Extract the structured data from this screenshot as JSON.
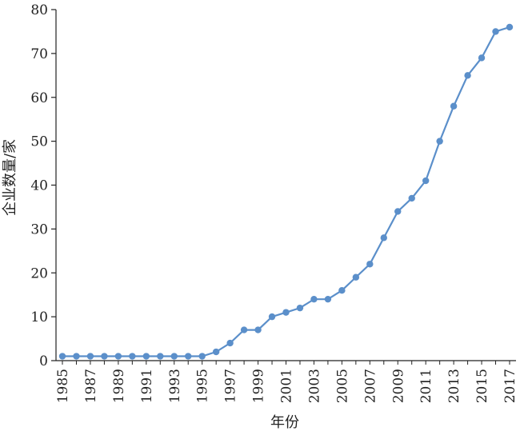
{
  "chart_data": {
    "type": "line",
    "title": "",
    "xlabel": "年份",
    "ylabel": "企业数量/家",
    "x": [
      1985,
      1986,
      1987,
      1988,
      1989,
      1990,
      1991,
      1992,
      1993,
      1994,
      1995,
      1996,
      1997,
      1998,
      1999,
      2000,
      2001,
      2002,
      2003,
      2004,
      2005,
      2006,
      2007,
      2008,
      2009,
      2010,
      2011,
      2012,
      2013,
      2014,
      2015,
      2016,
      2017
    ],
    "x_tick_labels": [
      "1985",
      "1987",
      "1989",
      "1991",
      "1993",
      "1995",
      "1997",
      "1999",
      "2001",
      "2003",
      "2005",
      "2007",
      "2009",
      "2011",
      "2013",
      "2015",
      "2017"
    ],
    "y_tick_labels": [
      "0",
      "10",
      "20",
      "30",
      "40",
      "50",
      "60",
      "70",
      "80"
    ],
    "series": [
      {
        "values": [
          1,
          1,
          1,
          1,
          1,
          1,
          1,
          1,
          1,
          1,
          1,
          2,
          4,
          7,
          7,
          10,
          11,
          12,
          14,
          14,
          16,
          19,
          22,
          28,
          34,
          37,
          41,
          50,
          58,
          65,
          69,
          75,
          76
        ]
      }
    ],
    "xlim": [
      1985,
      2017
    ],
    "ylim": [
      0,
      80
    ],
    "grid": false,
    "line_color": "#5b8fca"
  }
}
